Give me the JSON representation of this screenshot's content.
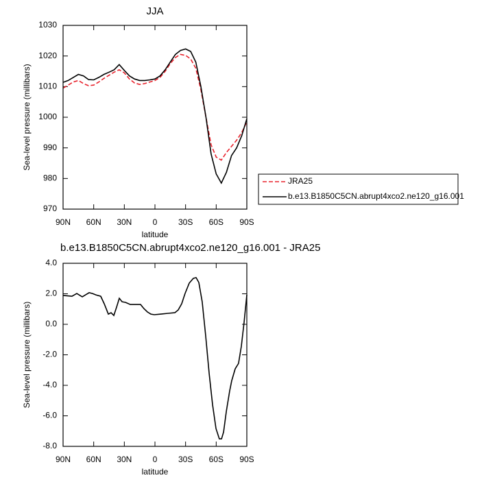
{
  "chart_data": [
    {
      "type": "line",
      "title": "JJA",
      "xlabel": "latitude",
      "ylabel": "Sea-level pressure (millibars)",
      "xlim": [
        90,
        -90
      ],
      "xticks": [
        {
          "value": 90,
          "label": "90N"
        },
        {
          "value": 60,
          "label": "60N"
        },
        {
          "value": 30,
          "label": "30N"
        },
        0,
        {
          "value": -30,
          "label": "30S"
        },
        {
          "value": -60,
          "label": "60S"
        },
        {
          "value": -90,
          "label": "90S"
        }
      ],
      "ylim": [
        970,
        1030
      ],
      "yticks": [
        970,
        980,
        990,
        1000,
        1010,
        1020,
        1030
      ],
      "legend": "right",
      "x": [
        90,
        85,
        80,
        75,
        70,
        65,
        60,
        55,
        50,
        45,
        40,
        35,
        30,
        25,
        20,
        15,
        10,
        5,
        0,
        -5,
        -10,
        -15,
        -20,
        -25,
        -30,
        -35,
        -40,
        -45,
        -50,
        -55,
        -60,
        -65,
        -70,
        -75,
        -80,
        -85,
        -90
      ],
      "series": [
        {
          "name": "JRA25",
          "color": "#e8202a",
          "line_style": "dashed",
          "values": [
            1009.5,
            1010.5,
            1011.5,
            1012,
            1011,
            1010.3,
            1010.5,
            1011.5,
            1012.7,
            1013.7,
            1014.7,
            1015.5,
            1014.5,
            1012.5,
            1011.2,
            1010.7,
            1011,
            1011.5,
            1012,
            1013,
            1015,
            1017.5,
            1019.5,
            1020.5,
            1020.2,
            1019,
            1016,
            1009,
            1000,
            991,
            987,
            986,
            988.5,
            990.5,
            992.5,
            995,
            998.5
          ]
        },
        {
          "name": "b.e13.B1850C5CN.abrupt4xco2.ne120_g16.001",
          "color": "#000000",
          "line_style": "solid",
          "values": [
            1011.4,
            1012,
            1013,
            1014,
            1013.5,
            1012.3,
            1012.2,
            1013,
            1014,
            1014.7,
            1015.5,
            1017.2,
            1015.3,
            1013.5,
            1012.5,
            1012,
            1012,
            1012.2,
            1012.5,
            1013.5,
            1015.5,
            1018,
            1020.5,
            1021.8,
            1022.3,
            1021.5,
            1018,
            1010,
            1000,
            988,
            981.5,
            978.5,
            982,
            987.5,
            990,
            994,
            999.5
          ]
        }
      ]
    },
    {
      "type": "line",
      "title": "b.e13.B1850C5CN.abrupt4xco2.ne120_g16.001 - JRA25",
      "xlabel": "latitude",
      "ylabel": "Sea-level pressure (millibars)",
      "xlim": [
        90,
        -90
      ],
      "xticks": [
        {
          "value": 90,
          "label": "90N"
        },
        {
          "value": 60,
          "label": "60N"
        },
        {
          "value": 30,
          "label": "30N"
        },
        0,
        {
          "value": -30,
          "label": "30S"
        },
        {
          "value": -60,
          "label": "60S"
        },
        {
          "value": -90,
          "label": "90S"
        }
      ],
      "ylim": [
        -8,
        4
      ],
      "yticks": [
        {
          "value": -8,
          "label": "-8.0"
        },
        {
          "value": -6,
          "label": "-6.0"
        },
        {
          "value": -4,
          "label": "-4.0"
        },
        {
          "value": -2,
          "label": "-2.0"
        },
        {
          "value": 0,
          "label": "0.0"
        },
        {
          "value": 2,
          "label": "2.0"
        },
        {
          "value": 4,
          "label": "4.0"
        }
      ],
      "x": [
        90,
        81.3,
        76.6,
        71.2,
        64.5,
        61.1,
        57.8,
        53.1,
        49.7,
        45.7,
        43,
        40.3,
        37.6,
        34.9,
        32.2,
        28.9,
        24.2,
        17.5,
        14.1,
        10.8,
        7.4,
        4,
        0.7,
        -6,
        -12.7,
        -19.5,
        -22.8,
        -26.2,
        -29.5,
        -33.6,
        -37.6,
        -40.3,
        -43,
        -46.3,
        -49.7,
        -53.1,
        -56.4,
        -59.8,
        -63.1,
        -65.2,
        -67.2,
        -69.9,
        -73.2,
        -75.2,
        -78.6,
        -81.9,
        -84.6,
        -87.3,
        -90
      ],
      "color": "#000000",
      "values": [
        1.89,
        1.84,
        2.02,
        1.8,
        2.07,
        2.02,
        1.93,
        1.84,
        1.35,
        0.67,
        0.76,
        0.58,
        1.12,
        1.71,
        1.48,
        1.44,
        1.3,
        1.3,
        1.3,
        1.03,
        0.81,
        0.67,
        0.63,
        0.67,
        0.72,
        0.76,
        0.94,
        1.35,
        2.02,
        2.7,
        3.01,
        3.06,
        2.74,
        1.48,
        -0.76,
        -3.24,
        -5.26,
        -6.83,
        -7.51,
        -7.51,
        -7.06,
        -5.71,
        -4.36,
        -3.69,
        -2.92,
        -2.56,
        -1.44,
        0.13,
        1.93
      ]
    }
  ]
}
